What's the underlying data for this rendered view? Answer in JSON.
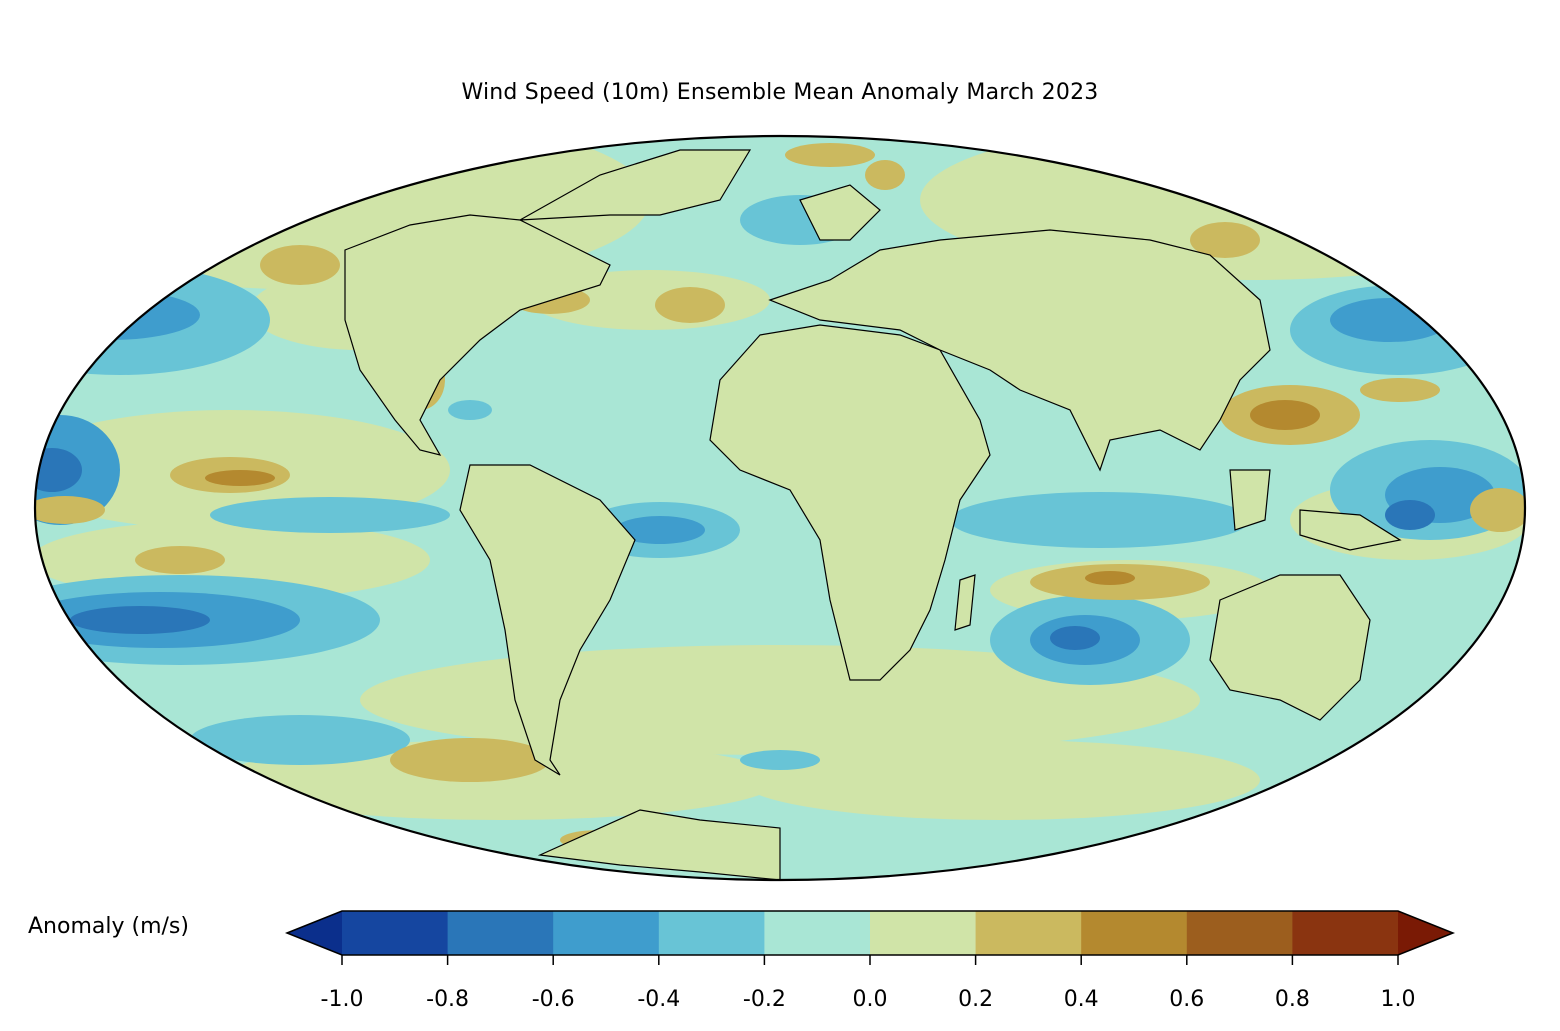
{
  "title": "Wind Speed (10m) Ensemble Mean Anomaly March 2023",
  "projection": "mollweide",
  "colorbar": {
    "label": "Anomaly (m/s)",
    "extend": "both",
    "boundaries": [
      -1.0,
      -0.8,
      -0.6,
      -0.4,
      -0.2,
      0.0,
      0.2,
      0.4,
      0.6,
      0.8,
      1.0
    ],
    "tick_labels": [
      "-1.0",
      "-0.8",
      "-0.6",
      "-0.4",
      "-0.2",
      "0.0",
      "0.2",
      "0.4",
      "0.6",
      "0.8",
      "1.0"
    ],
    "under_color": "#0b2f8c",
    "colors": [
      "#1546a0",
      "#2a76b8",
      "#3f9dcd",
      "#68c4d6",
      "#a9e6d5",
      "#d0e4a8",
      "#cbb95f",
      "#b4892f",
      "#9c5e1e",
      "#8a3410"
    ],
    "over_color": "#7a1a05"
  },
  "map_colors": {
    "ocean_base": "#a9e6d5",
    "land_base": "#d0e4a8"
  }
}
